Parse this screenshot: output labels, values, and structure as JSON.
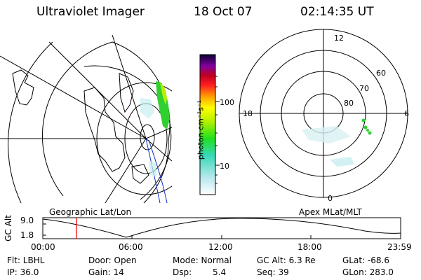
{
  "header": {
    "instrument": "Ultraviolet Imager",
    "date": "18 Oct 07",
    "time": "02:14:35 UT"
  },
  "colorbar": {
    "unit_label": "photon cm⁻²s⁻¹",
    "tick_100": "100",
    "tick_10": "10"
  },
  "polar": {
    "mlt_labels": {
      "top": "12",
      "left": "18",
      "right": "6",
      "bottom": "0"
    },
    "lat_labels": [
      "60",
      "70",
      "80"
    ]
  },
  "panels": {
    "left_caption": "Geographic Lat/Lon",
    "right_caption": "Apex MLat/MLT"
  },
  "altitude_plot": {
    "ylabel": "GC Alt",
    "y_ticks": [
      "9.0",
      "1.8"
    ],
    "x_ticks": [
      "00:00",
      "06:00",
      "12:00",
      "18:00",
      "23:59"
    ],
    "marker_time": "02:14:35",
    "colors": {
      "marker": "#ff0000"
    }
  },
  "status": {
    "flt": "Flt: LBHL",
    "door": "Door: Open",
    "mode": "Mode: Normal",
    "gcalt": "GC Alt: 6.3 Re",
    "glat": "GLat: -68.6",
    "ip": "IP: 36.0",
    "gain": "Gain: 14",
    "dsp_label": "Dsp:",
    "dsp_value": "5.4",
    "seq": "Seq: 39",
    "glon": "GLon: 283.0"
  }
}
